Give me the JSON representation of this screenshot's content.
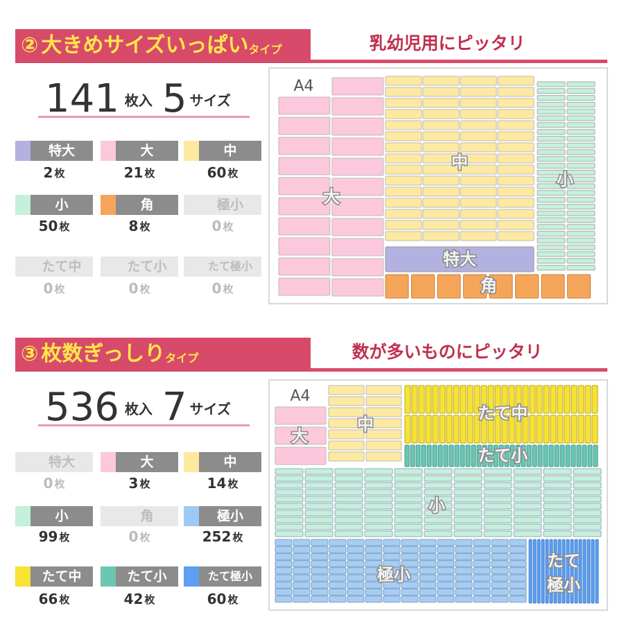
{
  "sections": [
    {
      "number": "②",
      "title": "大きめサイズいっぱい",
      "title_suffix": "タイプ",
      "tagline": "乳幼児用にピッタリ",
      "total": 141,
      "total_unit": "枚入",
      "sizes": 5,
      "sizes_unit": "サイズ",
      "items": [
        {
          "label": "特大",
          "count": 2,
          "unit": "枚",
          "color": "#b3b1e0",
          "active": true
        },
        {
          "label": "大",
          "count": 21,
          "unit": "枚",
          "color": "#fcc8dc",
          "active": true
        },
        {
          "label": "中",
          "count": 60,
          "unit": "枚",
          "color": "#fde9a0",
          "active": true
        },
        {
          "label": "小",
          "count": 50,
          "unit": "枚",
          "color": "#c4f0dc",
          "active": true
        },
        {
          "label": "角",
          "count": 8,
          "unit": "枚",
          "color": "#f5a55a",
          "active": true
        },
        {
          "label": "極小",
          "count": 0,
          "unit": "枚",
          "color": "#9ccaf5",
          "active": false
        },
        {
          "label": "たて中",
          "count": 0,
          "unit": "枚",
          "color": "#f8e233",
          "active": false
        },
        {
          "label": "たて小",
          "count": 0,
          "unit": "枚",
          "color": "#6bc6b2",
          "active": false
        },
        {
          "label": "たて極小",
          "count": 0,
          "unit": "枚",
          "color": "#5d9ff0",
          "active": false
        }
      ],
      "diagram": {
        "paper": "A4",
        "labels": [
          "大",
          "中",
          "小",
          "特大",
          "角"
        ]
      }
    },
    {
      "number": "③",
      "title": "枚数ぎっしり",
      "title_suffix": "タイプ",
      "tagline": "数が多いものにピッタリ",
      "total": 536,
      "total_unit": "枚入",
      "sizes": 7,
      "sizes_unit": "サイズ",
      "items": [
        {
          "label": "特大",
          "count": 0,
          "unit": "枚",
          "color": "#b3b1e0",
          "active": false
        },
        {
          "label": "大",
          "count": 3,
          "unit": "枚",
          "color": "#fcc8dc",
          "active": true
        },
        {
          "label": "中",
          "count": 14,
          "unit": "枚",
          "color": "#fde9a0",
          "active": true
        },
        {
          "label": "小",
          "count": 99,
          "unit": "枚",
          "color": "#c4f0dc",
          "active": true
        },
        {
          "label": "角",
          "count": 0,
          "unit": "枚",
          "color": "#f5a55a",
          "active": false
        },
        {
          "label": "極小",
          "count": 252,
          "unit": "枚",
          "color": "#9ccaf5",
          "active": true
        },
        {
          "label": "たて中",
          "count": 66,
          "unit": "枚",
          "color": "#f8e233",
          "active": true
        },
        {
          "label": "たて小",
          "count": 42,
          "unit": "枚",
          "color": "#6bc6b2",
          "active": true
        },
        {
          "label": "たて極小",
          "count": 60,
          "unit": "枚",
          "color": "#5d9ff0",
          "active": true
        }
      ],
      "diagram": {
        "paper": "A4",
        "labels": [
          "大",
          "中",
          "たて中",
          "たて小",
          "小",
          "極小",
          [
            "たて",
            "極小"
          ]
        ]
      }
    }
  ]
}
